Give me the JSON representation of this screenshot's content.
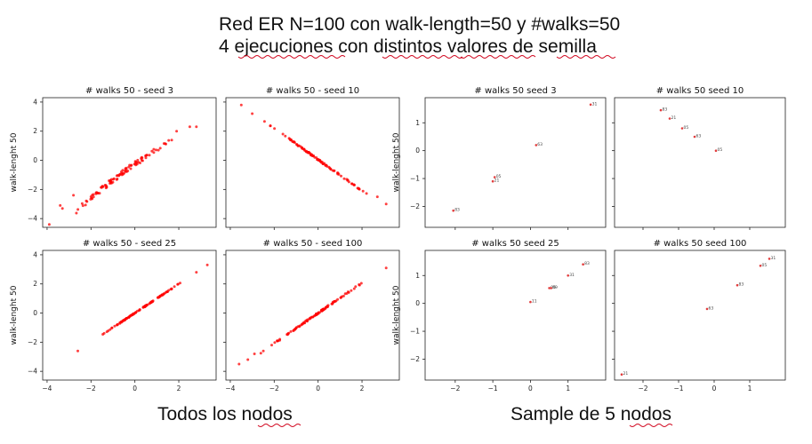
{
  "slide": {
    "title_line1": "Red ER N=100 con walk-length=50 y #walks=50",
    "title_line2": "4 ejecuciones con distintos valores de semilla",
    "caption_left": "Todos los nodos",
    "caption_right": "Sample de 5 nodos"
  },
  "colors": {
    "points": "#ff0000",
    "text": "#111111"
  },
  "chart_data": [
    {
      "type": "scatter",
      "group": "Todos los nodos",
      "title": "# walks 50 - seed 3",
      "ylabel": "walk-lenght 50",
      "xlim": [
        -4.2,
        3.7
      ],
      "ylim": [
        -4.6,
        4.3
      ],
      "xticks": [],
      "yticks": [
        -4,
        -2,
        0,
        2,
        4
      ],
      "trend": {
        "x_start": -3.9,
        "x_end": 2.8,
        "slope": 1.05,
        "intercept": -0.25,
        "bend": -0.12,
        "noise": 0.18,
        "n_points": 100
      },
      "points": [
        [
          -3.9,
          -4.4
        ],
        [
          2.8,
          2.3
        ],
        [
          2.5,
          2.3
        ],
        [
          1.9,
          2.0
        ],
        [
          -3.4,
          -3.1
        ],
        [
          -3.3,
          -3.3
        ],
        [
          -2.8,
          -2.4
        ]
      ]
    },
    {
      "type": "scatter",
      "group": "Todos los nodos",
      "title": "# walks 50 - seed 10",
      "ylabel": "",
      "xlim": [
        -4.2,
        3.7
      ],
      "ylim": [
        -4.6,
        4.3
      ],
      "xticks": [],
      "yticks": [],
      "trend": {
        "x_start": -3.5,
        "x_end": 3.1,
        "slope": -1.07,
        "intercept": 0.05,
        "bend": 0.0,
        "noise": 0.05,
        "n_points": 100
      },
      "points": [
        [
          -3.5,
          3.8
        ],
        [
          -3.0,
          3.2
        ],
        [
          3.1,
          -3.0
        ],
        [
          2.7,
          -2.5
        ]
      ]
    },
    {
      "type": "scatter",
      "group": "Todos los nodos",
      "title": "# walks 50 - seed 25",
      "ylabel": "walk-lenght 50",
      "xlim": [
        -4.2,
        3.7
      ],
      "ylim": [
        -4.6,
        4.3
      ],
      "xticks": [
        -4,
        -2,
        0,
        2
      ],
      "yticks": [
        -4,
        -2,
        0,
        2,
        4
      ],
      "trend": {
        "x_start": -2.6,
        "x_end": 3.3,
        "slope": 1.0,
        "intercept": 0.0,
        "bend": 0.0,
        "noise": 0.03,
        "n_points": 100
      },
      "points": [
        [
          -2.6,
          -2.6
        ],
        [
          3.3,
          3.3
        ],
        [
          2.8,
          2.8
        ]
      ]
    },
    {
      "type": "scatter",
      "group": "Todos los nodos",
      "title": "# walks 50 - seed 100",
      "ylabel": "",
      "xlim": [
        -4.2,
        3.7
      ],
      "ylim": [
        -4.6,
        4.3
      ],
      "xticks": [
        -4,
        -2,
        0,
        2
      ],
      "yticks": [],
      "trend": {
        "x_start": -3.6,
        "x_end": 3.1,
        "slope": 1.04,
        "intercept": 0.0,
        "bend": 0.0,
        "noise": 0.05,
        "n_points": 100
      },
      "points": [
        [
          -3.6,
          -3.5
        ],
        [
          -3.2,
          -3.2
        ],
        [
          3.1,
          3.1
        ],
        [
          -2.9,
          -2.8
        ]
      ]
    },
    {
      "type": "scatter",
      "group": "Sample de 5 nodos",
      "title": "# walks 50 seed 3",
      "ylabel": "walk-lenght 50",
      "xlim": [
        -2.8,
        2.0
      ],
      "ylim": [
        -2.75,
        1.9
      ],
      "xticks": [],
      "yticks": [
        -2,
        -1,
        0,
        1
      ],
      "points": [
        {
          "x": -2.05,
          "y": -2.15,
          "label": "83"
        },
        {
          "x": -1.0,
          "y": -1.1,
          "label": "21"
        },
        {
          "x": -0.95,
          "y": -0.95,
          "label": "05"
        },
        {
          "x": 0.15,
          "y": 0.2,
          "label": "63"
        },
        {
          "x": 1.6,
          "y": 1.65,
          "label": "31"
        }
      ]
    },
    {
      "type": "scatter",
      "group": "Sample de 5 nodos",
      "title": "# walks 50 seed 10",
      "ylabel": "",
      "xlim": [
        -2.8,
        2.0
      ],
      "ylim": [
        -2.75,
        1.9
      ],
      "xticks": [],
      "yticks": [],
      "points": [
        {
          "x": -1.5,
          "y": 1.45,
          "label": "83"
        },
        {
          "x": -1.25,
          "y": 1.15,
          "label": "21"
        },
        {
          "x": -0.9,
          "y": 0.8,
          "label": "05"
        },
        {
          "x": -0.55,
          "y": 0.5,
          "label": "63"
        },
        {
          "x": 0.05,
          "y": 0.0,
          "label": "05"
        }
      ]
    },
    {
      "type": "scatter",
      "group": "Sample de 5 nodos",
      "title": "# walks 50 seed 25",
      "ylabel": "walk-lenght 50",
      "xlim": [
        -2.8,
        2.0
      ],
      "ylim": [
        -2.75,
        1.9
      ],
      "xticks": [
        -2,
        -1,
        0,
        1
      ],
      "yticks": [
        -2,
        -1,
        0,
        1
      ],
      "points": [
        {
          "x": 0.0,
          "y": 0.05,
          "label": "11"
        },
        {
          "x": 0.5,
          "y": 0.55,
          "label": "05"
        },
        {
          "x": 0.55,
          "y": 0.55,
          "label": "89"
        },
        {
          "x": 1.0,
          "y": 1.0,
          "label": "31"
        },
        {
          "x": 1.4,
          "y": 1.4,
          "label": "83"
        }
      ]
    },
    {
      "type": "scatter",
      "group": "Sample de 5 nodos",
      "title": "# walks 50 seed 100",
      "ylabel": "",
      "xlim": [
        -2.8,
        2.0
      ],
      "ylim": [
        -2.75,
        1.9
      ],
      "xticks": [
        -2,
        -1,
        0,
        1
      ],
      "yticks": [],
      "points": [
        {
          "x": -2.6,
          "y": -2.55,
          "label": "21"
        },
        {
          "x": -0.2,
          "y": -0.2,
          "label": "63"
        },
        {
          "x": 0.65,
          "y": 0.65,
          "label": "83"
        },
        {
          "x": 1.3,
          "y": 1.35,
          "label": "05"
        },
        {
          "x": 1.55,
          "y": 1.6,
          "label": "31"
        }
      ]
    }
  ]
}
